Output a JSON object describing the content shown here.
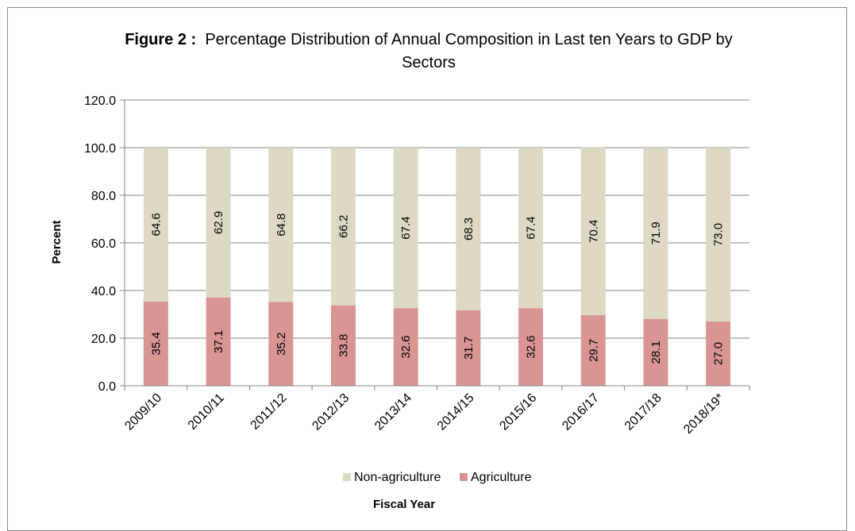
{
  "chart_data": {
    "type": "bar",
    "stacked": true,
    "title_prefix": "Figure 2 :",
    "title": "Percentage Distribution of Annual Composition in Last ten Years to GDP by Sectors",
    "xlabel": "Fiscal Year",
    "ylabel": "Percent",
    "ylim": [
      0,
      120
    ],
    "yticks": [
      "0.0",
      "20.0",
      "40.0",
      "60.0",
      "80.0",
      "100.0",
      "120.0"
    ],
    "grid": true,
    "legend_position": "bottom",
    "categories": [
      "2009/10",
      "2010/11",
      "2011/12",
      "2012/13",
      "2013/14",
      "2014/15",
      "2015/16",
      "2016/17",
      "2017/18",
      "2018/19*"
    ],
    "series": [
      {
        "name": "Agriculture",
        "color": "#d99594",
        "values": [
          35.4,
          37.1,
          35.2,
          33.8,
          32.6,
          31.7,
          32.6,
          29.7,
          28.1,
          27.0
        ],
        "labels": [
          "35.4",
          "37.1",
          "35.2",
          "33.8",
          "32.6",
          "31.7",
          "32.6",
          "29.7",
          "28.1",
          "27.0"
        ]
      },
      {
        "name": "Non-agriculture",
        "color": "#ddd9c4",
        "values": [
          64.6,
          62.9,
          64.8,
          66.2,
          67.4,
          68.3,
          67.4,
          70.4,
          71.9,
          73.0
        ],
        "labels": [
          "64.6",
          "62.9",
          "64.8",
          "66.2",
          "67.4",
          "68.3",
          "67.4",
          "70.4",
          "71.9",
          "73.0"
        ]
      }
    ],
    "legend_order": [
      "Non-agriculture",
      "Agriculture"
    ]
  }
}
